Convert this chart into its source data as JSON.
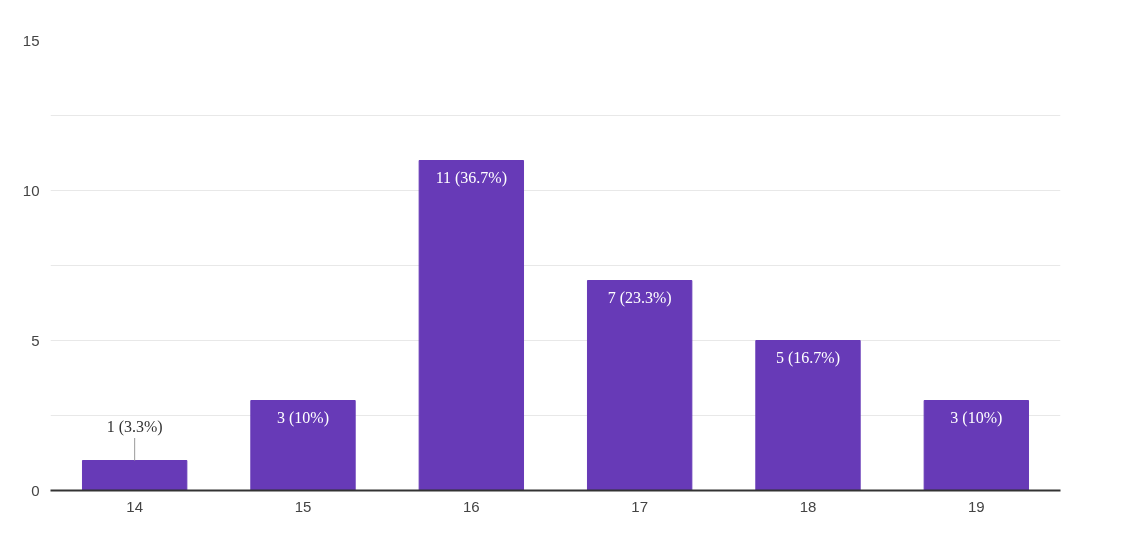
{
  "chart_data": {
    "type": "bar",
    "categories": [
      "14",
      "15",
      "16",
      "17",
      "18",
      "19"
    ],
    "values": [
      1,
      3,
      11,
      7,
      5,
      3
    ],
    "value_labels": [
      "1 (3.3%)",
      "3 (10%)",
      "11 (36.7%)",
      "7 (23.3%)",
      "5 (16.7%)",
      "3 (10%)"
    ],
    "color": "#673ab7",
    "ylim": [
      0,
      15
    ],
    "yticks": [
      0,
      {
        "value": 2.5,
        "label": null
      },
      5,
      {
        "value": 7.5,
        "label": null
      },
      10,
      {
        "value": 12.5,
        "label": null
      },
      15
    ],
    "grid": "y"
  }
}
